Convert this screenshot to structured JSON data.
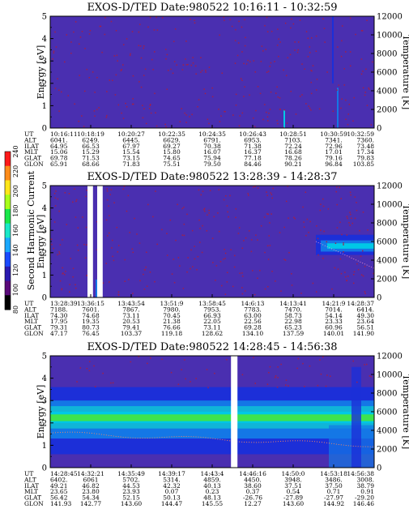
{
  "chart_data": [
    {
      "type": "heatmap",
      "title": "EXOS-D/TED   Date:980522   10:16:11 - 10:32:59",
      "ylabel": "Energy [eV]",
      "y2label": "Temperature [K]",
      "ylim": [
        0,
        5
      ],
      "y2lim": [
        0,
        12000
      ],
      "yticks": [
        "0",
        "1",
        "2",
        "3",
        "4",
        "5"
      ],
      "y2ticks": [
        "0",
        "2000",
        "4000",
        "6000",
        "8000",
        "10000",
        "12000"
      ],
      "gaps": [],
      "band": null,
      "rows": [
        {
          "label": "UT",
          "values": [
            "10:16:11",
            "10:18:19",
            "10:20:27",
            "10:22:35",
            "10:24:35",
            "10:26:43",
            "10:28:51",
            "10:30:59",
            "10:32:59"
          ]
        },
        {
          "label": "ALT",
          "values": [
            "6041.",
            "6249.",
            "6445.",
            "6629.",
            "6791.",
            "6953.",
            "7103.",
            "7341.",
            "7360."
          ]
        },
        {
          "label": "ILAT",
          "values": [
            "64.95",
            "66.53",
            "67.97",
            "69.27",
            "70.38",
            "71.38",
            "72.24",
            "72.96",
            "73.48"
          ]
        },
        {
          "label": "MLT",
          "values": [
            "15.06",
            "15.29",
            "15.54",
            "15.80",
            "16.07",
            "16.37",
            "16.68",
            "17.01",
            "17.34"
          ]
        },
        {
          "label": "GLAT",
          "values": [
            "69.78",
            "71.53",
            "73.15",
            "74.65",
            "75.94",
            "77.18",
            "78.26",
            "79.16",
            "79.83"
          ]
        },
        {
          "label": "GLON",
          "values": [
            "65.91",
            "68.66",
            "71.83",
            "75.51",
            "79.50",
            "84.46",
            "90.21",
            "96.84",
            "103.85"
          ]
        }
      ]
    },
    {
      "type": "heatmap",
      "title": "EXOS-D/TED   Date:980522   13:28:39 - 14:28:37",
      "ylabel": "Energy [eV]",
      "y2label": "Temperature [K]",
      "ylim": [
        0,
        5
      ],
      "y2lim": [
        0,
        12000
      ],
      "yticks": [
        "0",
        "1",
        "2",
        "3",
        "4",
        "5"
      ],
      "y2ticks": [
        "0",
        "2000",
        "4000",
        "6000",
        "8000",
        "10000",
        "12000"
      ],
      "gaps": [
        [
          0.115,
          0.132
        ],
        [
          0.145,
          0.162
        ]
      ],
      "band": {
        "y_center": 2.3,
        "x_start": 0.82,
        "note": "enhanced flux"
      },
      "rows": [
        {
          "label": "UT",
          "values": [
            "13:28:39",
            "13:36:15",
            "13:43:54",
            "13:51:9",
            "13:58:45",
            "14:6:13",
            "14:13:41",
            "14:21:9",
            "14:28:37"
          ]
        },
        {
          "label": "ALT",
          "values": [
            "7188.",
            "7601.",
            "7867.",
            "7980.",
            "7953.",
            "7783.",
            "7470.",
            "7014.",
            "6414."
          ]
        },
        {
          "label": "ILAT",
          "values": [
            "74.30",
            "74.68",
            "73.11",
            "70.45",
            "66.93",
            "63.00",
            "58.73",
            "54.14",
            "49.30"
          ]
        },
        {
          "label": "MLT",
          "values": [
            "17.95",
            "19.35",
            "20.53",
            "21.38",
            "22.05",
            "22.56",
            "22.98",
            "23.33",
            "23.64"
          ]
        },
        {
          "label": "GLAT",
          "values": [
            "79.31",
            "80.73",
            "79.41",
            "76.66",
            "73.11",
            "69.28",
            "65.23",
            "60.96",
            "56.51"
          ]
        },
        {
          "label": "GLON",
          "values": [
            "47.17",
            "76.45",
            "103.37",
            "119.18",
            "128.62",
            "134.10",
            "137.59",
            "140.01",
            "141.90"
          ]
        }
      ]
    },
    {
      "type": "heatmap",
      "title": "EXOS-D/TED   Date:980522   14:28:45 - 14:56:38",
      "ylabel": "Energy [eV]",
      "y2label": "Temperature [K]",
      "ylim": [
        0,
        5
      ],
      "y2lim": [
        0,
        12000
      ],
      "yticks": [
        "0",
        "1",
        "2",
        "3",
        "4",
        "5"
      ],
      "y2ticks": [
        "0",
        "2000",
        "4000",
        "6000",
        "8000",
        "10000",
        "12000"
      ],
      "gaps": [
        [
          0.558,
          0.578
        ]
      ],
      "band": {
        "y_center": 2.2,
        "x_start": 0.0,
        "note": "enhanced flux band"
      },
      "rows": [
        {
          "label": "UT",
          "values": [
            "14:28:45",
            "14:32:21",
            "14:35:49",
            "14:39:17",
            "14:43:4",
            "14:46:16",
            "14:50:0",
            "14:53:18",
            "14:56:38"
          ]
        },
        {
          "label": "ALT",
          "values": [
            "6402.",
            "6061",
            "5702.",
            "5314.",
            "4859.",
            "4450.",
            "3948.",
            "3486.",
            "3008."
          ]
        },
        {
          "label": "ILAT",
          "values": [
            "49.21",
            "46.82",
            "44.53",
            "42.32",
            "40.13",
            "38.60",
            "37.51",
            "37.50",
            "38.79"
          ]
        },
        {
          "label": "MLT",
          "values": [
            "23.65",
            "23.80",
            "23.93",
            "0.07",
            "0.23",
            "0.37",
            "0.54",
            "0.71",
            "0.91"
          ]
        },
        {
          "label": "GLAT",
          "values": [
            "56.42",
            "54.34",
            "52.15",
            "50.13",
            "48.13",
            "-26.76",
            "-27.89",
            "-27.97",
            "-29.20"
          ]
        },
        {
          "label": "GLON",
          "values": [
            "141.93",
            "142.77",
            "143.60",
            "144.47",
            "145.55",
            "12.27",
            "143.60",
            "144.92",
            "146.46"
          ]
        }
      ]
    }
  ],
  "colorbar": {
    "label": "Second Harmonic Current",
    "ticks": [
      "80",
      "100",
      "120",
      "140",
      "160",
      "180",
      "200",
      "220",
      "240"
    ],
    "range": [
      80,
      240
    ]
  },
  "colors": {
    "background": "#4a2fb0",
    "speckle": "#a0204a",
    "deep": "#1c2fd8",
    "mid": "#1477e6",
    "cyan": "#00c8e6",
    "green": "#3ee34e"
  }
}
